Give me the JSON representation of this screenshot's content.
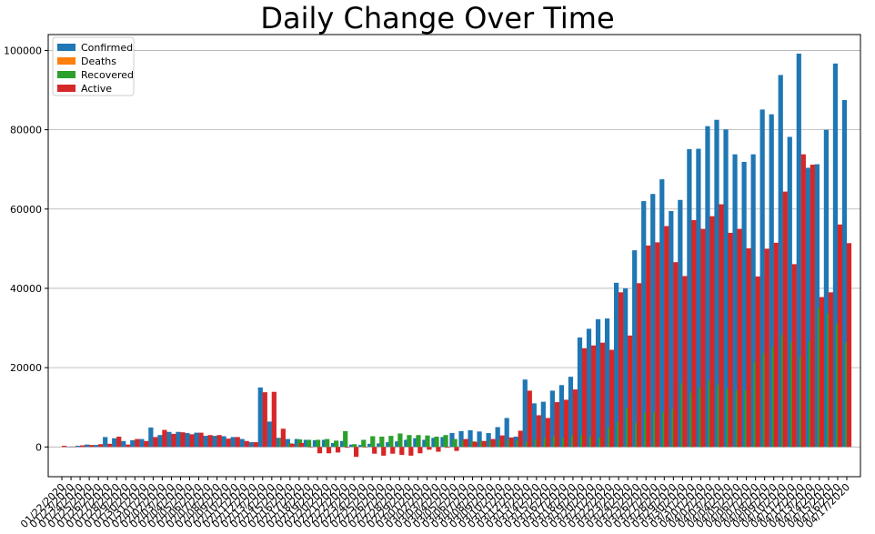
{
  "chart_data": {
    "type": "bar",
    "title": "Daily Change Over Time",
    "xlabel": "",
    "ylabel": "",
    "ylim": [
      -7500,
      104000
    ],
    "yticks": [
      0,
      20000,
      40000,
      60000,
      80000,
      100000
    ],
    "grid": "horizontal",
    "legend": "top-left",
    "colors": {
      "Confirmed": "#1f77b4",
      "Deaths": "#ff7f0e",
      "Recovered": "#2ca02c",
      "Active": "#d62728"
    },
    "categories": [
      "01/22/2020",
      "01/23/2020",
      "01/24/2020",
      "01/25/2020",
      "01/26/2020",
      "01/27/2020",
      "01/28/2020",
      "01/29/2020",
      "01/30/2020",
      "01/31/2020",
      "02/01/2020",
      "02/02/2020",
      "02/03/2020",
      "02/04/2020",
      "02/05/2020",
      "02/06/2020",
      "02/07/2020",
      "02/08/2020",
      "02/09/2020",
      "02/10/2020",
      "02/11/2020",
      "02/12/2020",
      "02/13/2020",
      "02/14/2020",
      "02/15/2020",
      "02/16/2020",
      "02/17/2020",
      "02/18/2020",
      "02/19/2020",
      "02/20/2020",
      "02/21/2020",
      "02/22/2020",
      "02/23/2020",
      "02/24/2020",
      "02/25/2020",
      "02/26/2020",
      "02/27/2020",
      "02/28/2020",
      "02/29/2020",
      "03/01/2020",
      "03/02/2020",
      "03/03/2020",
      "03/04/2020",
      "03/05/2020",
      "03/06/2020",
      "03/07/2020",
      "03/08/2020",
      "03/09/2020",
      "03/10/2020",
      "03/11/2020",
      "03/12/2020",
      "03/13/2020",
      "03/14/2020",
      "03/15/2020",
      "03/16/2020",
      "03/17/2020",
      "03/18/2020",
      "03/19/2020",
      "03/20/2020",
      "03/21/2020",
      "03/22/2020",
      "03/23/2020",
      "03/24/2020",
      "03/25/2020",
      "03/26/2020",
      "03/27/2020",
      "03/28/2020",
      "03/29/2020",
      "03/30/2020",
      "03/31/2020",
      "04/01/2020",
      "04/02/2020",
      "04/03/2020",
      "04/04/2020",
      "04/05/2020",
      "04/06/2020",
      "04/07/2020",
      "04/08/2020",
      "04/09/2020",
      "04/10/2020",
      "04/11/2020",
      "04/12/2020",
      "04/13/2020",
      "04/14/2020",
      "04/15/2020",
      "04/16/2020",
      "04/17/2020"
    ],
    "visible_tick_labels": [
      "01/22/2020",
      "01/23/2020",
      "01/24/2020",
      "01/25/2020",
      "01/26/2020",
      "01/27/2020",
      "01/28/2020",
      "01/29/2020",
      "01/30/2020",
      "01/31/2020",
      "02/01/2020",
      "02/02/2020",
      "02/03/2020",
      "02/04/2020",
      "02/05/2020",
      "02/06/2020",
      "02/07/2020",
      "02/08/2020",
      "02/09/2020",
      "02/10/2020",
      "02/11/2020",
      "02/12/2020",
      "02/13/2020",
      "02/14/2020",
      "02/15/2020",
      "02/16/2020",
      "02/17/2020",
      "02/18/2020",
      "02/19/2020",
      "02/20/2020",
      "02/21/2020",
      "02/22/2020",
      "02/23/2020",
      "02/24/2020",
      "02/25/2020",
      "02/26/2020",
      "02/27/2020",
      "02/28/2020",
      "02/29/2020",
      "03/01/2020",
      "03/02/2020",
      "03/03/2020",
      "03/04/2020",
      "03/05/2020",
      "03/06/2020",
      "03/07/2020",
      "03/08/2020",
      "03/09/2020",
      "03/10/2020",
      "03/11/2020",
      "03/12/2020",
      "03/13/2020",
      "03/14/2020",
      "03/15/2020",
      "03/16/2020",
      "03/17/2020",
      "03/18/2020",
      "03/19/2020",
      "03/20/2020",
      "03/21/2020",
      "03/22/2020",
      "03/23/2020",
      "03/24/2020",
      "03/25/2020",
      "03/26/2020",
      "03/27/2020",
      "03/28/2020",
      "03/29/2020",
      "03/30/2020",
      "03/31/2020",
      "04/01/2020",
      "04/02/2020",
      "04/03/2020",
      "04/04/2020",
      "04/05/2020",
      "04/06/2020",
      "04/07/2020",
      "04/08/2020",
      "04/09/2020",
      "04/10/2020",
      "04/11/2020",
      "04/12/2020",
      "04/13/2020",
      "04/14/2020",
      "04/15/2020",
      "04/16/2020",
      "04/17/2020"
    ],
    "series": [
      {
        "name": "Confirmed",
        "values": [
          0,
          100,
          300,
          600,
          500,
          2500,
          2200,
          1500,
          1700,
          2000,
          4900,
          3000,
          3800,
          3800,
          3500,
          3600,
          2800,
          2800,
          2700,
          2500,
          2000,
          1200,
          15000,
          6400,
          2300,
          2000,
          2000,
          1800,
          1700,
          1800,
          1000,
          1500,
          600,
          500,
          800,
          900,
          1200,
          1400,
          1800,
          2200,
          1800,
          2300,
          2500,
          3500,
          4000,
          4200,
          3900,
          3500,
          5000,
          7300,
          2600,
          17000,
          11000,
          11400,
          14200,
          15600,
          17700,
          27600,
          29800,
          32200,
          32400,
          41400,
          40000,
          49600,
          62000,
          63800,
          67500,
          59500,
          62300,
          75100,
          75200,
          80900,
          82500,
          80100,
          73800,
          71900,
          73800,
          85100,
          83900,
          93800,
          78200,
          99200,
          70400,
          71300,
          80000,
          96700,
          87500
        ]
      },
      {
        "name": "Deaths",
        "values": [
          0,
          0,
          0,
          0,
          0,
          0,
          0,
          0,
          0,
          0,
          0,
          0,
          0,
          0,
          0,
          0,
          0,
          0,
          0,
          0,
          0,
          0,
          0,
          0,
          0,
          0,
          0,
          0,
          0,
          0,
          0,
          0,
          0,
          0,
          0,
          0,
          0,
          0,
          0,
          0,
          0,
          0,
          0,
          0,
          0,
          0,
          0,
          0,
          0,
          0,
          0,
          0,
          0,
          0,
          0,
          0,
          0,
          0,
          0,
          0,
          0,
          0,
          0,
          0,
          0,
          0,
          0,
          0,
          0,
          0,
          0,
          0,
          0,
          0,
          0,
          0,
          0,
          0,
          0,
          0,
          0,
          0,
          0,
          0,
          0,
          0,
          0
        ]
      },
      {
        "name": "Recovered",
        "values": [
          0,
          0,
          0,
          0,
          0,
          0,
          0,
          0,
          0,
          0,
          0,
          0,
          0,
          0,
          0,
          0,
          0,
          0,
          0,
          0,
          0,
          0,
          0,
          0,
          2100,
          900,
          1900,
          1800,
          1800,
          2000,
          1600,
          4000,
          700,
          1800,
          2700,
          2600,
          2800,
          3400,
          3000,
          3000,
          2900,
          2600,
          3000,
          2000,
          1700,
          1400,
          1500,
          1500,
          1800,
          1800,
          1700,
          1300,
          1900,
          2200,
          2600,
          2300,
          2900,
          3000,
          2600,
          2400,
          5000,
          6400,
          9800,
          6100,
          8600,
          8800,
          8800,
          9600,
          16100,
          13600,
          15000,
          16800,
          15700,
          14700,
          14200,
          14400,
          21500,
          23600,
          25300,
          28300,
          26400,
          22900,
          26600,
          35100,
          33700,
          31100,
          26300
        ]
      },
      {
        "name": "Active",
        "values": [
          300,
          100,
          400,
          500,
          700,
          800,
          2600,
          600,
          2000,
          1500,
          2500,
          4300,
          3300,
          3700,
          3200,
          3600,
          3000,
          3000,
          2100,
          2500,
          1500,
          1200,
          13800,
          13900,
          4600,
          800,
          1000,
          -100,
          -1600,
          -1600,
          -1400,
          -200,
          -2500,
          -100,
          -1700,
          -2200,
          -1700,
          -2000,
          -2200,
          -1600,
          -700,
          -1200,
          -200,
          -1000,
          2000,
          1300,
          1500,
          2000,
          2900,
          2400,
          4100,
          14200,
          8000,
          7300,
          11300,
          11900,
          14500,
          24900,
          25600,
          26300,
          24500,
          39000,
          28100,
          41300,
          50800,
          51600,
          55700,
          46600,
          43100,
          57200,
          55000,
          58200,
          61200,
          54000,
          55000,
          50100,
          43000,
          50000,
          51500,
          64400,
          46100,
          73800,
          71200,
          37800,
          39000,
          56100,
          51400
        ]
      }
    ]
  }
}
